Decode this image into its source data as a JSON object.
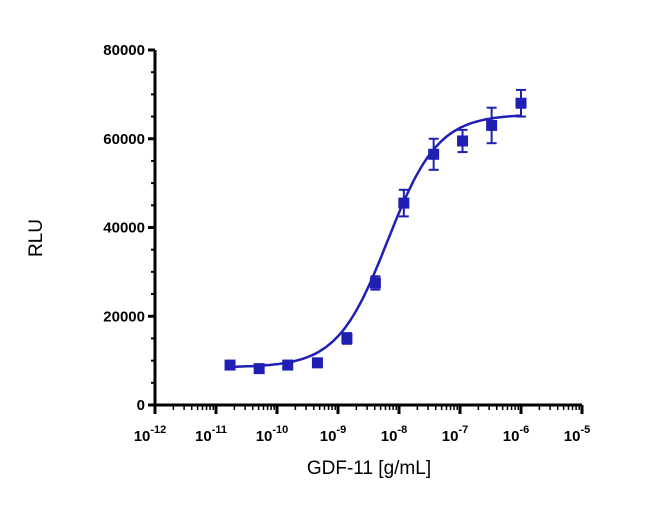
{
  "chart_data": {
    "type": "scatter",
    "title": "",
    "xlabel": "GDF-11 [g/mL]",
    "ylabel": "RLU",
    "x_scale": "log10",
    "x_ticks": [
      {
        "exp": -12,
        "base": "10",
        "sup": "-12"
      },
      {
        "exp": -11,
        "base": "10",
        "sup": "-11"
      },
      {
        "exp": -10,
        "base": "10",
        "sup": "-10"
      },
      {
        "exp": -9,
        "base": "10",
        "sup": "-9"
      },
      {
        "exp": -8,
        "base": "10",
        "sup": "-8"
      },
      {
        "exp": -7,
        "base": "10",
        "sup": "-7"
      },
      {
        "exp": -6,
        "base": "10",
        "sup": "-6"
      },
      {
        "exp": -5,
        "base": "10",
        "sup": "-5"
      }
    ],
    "y_ticks": [
      {
        "value": 0,
        "label": "0"
      },
      {
        "value": 20000,
        "label": "20000"
      },
      {
        "value": 40000,
        "label": "40000"
      },
      {
        "value": 60000,
        "label": "60000"
      },
      {
        "value": 80000,
        "label": "80000"
      }
    ],
    "xlim": [
      1e-12,
      1e-05
    ],
    "ylim": [
      0,
      80000
    ],
    "grid": false,
    "legend": "none",
    "color": "#1f1fb4",
    "points": [
      {
        "x": 1.7e-11,
        "y": 9000,
        "err": 900
      },
      {
        "x": 5.1e-11,
        "y": 8200,
        "err": 800
      },
      {
        "x": 1.5e-10,
        "y": 9000,
        "err": 800
      },
      {
        "x": 4.6e-10,
        "y": 9500,
        "err": 900
      },
      {
        "x": 1.4e-09,
        "y": 15000,
        "err": 1200
      },
      {
        "x": 4.1e-09,
        "y": 27500,
        "err": 1500
      },
      {
        "x": 1.2e-08,
        "y": 45500,
        "err": 3000
      },
      {
        "x": 3.7e-08,
        "y": 56500,
        "err": 3500
      },
      {
        "x": 1.1e-07,
        "y": 59500,
        "err": 2500
      },
      {
        "x": 3.3e-07,
        "y": 63000,
        "err": 4000
      },
      {
        "x": 1e-06,
        "y": 68000,
        "err": 3000
      }
    ],
    "fit": {
      "model": "4PL",
      "bottom": 8500,
      "top": 65500,
      "ec50": 6.5e-09,
      "hill": 1.05,
      "x_range": [
        1.7e-11,
        1e-06
      ]
    }
  }
}
